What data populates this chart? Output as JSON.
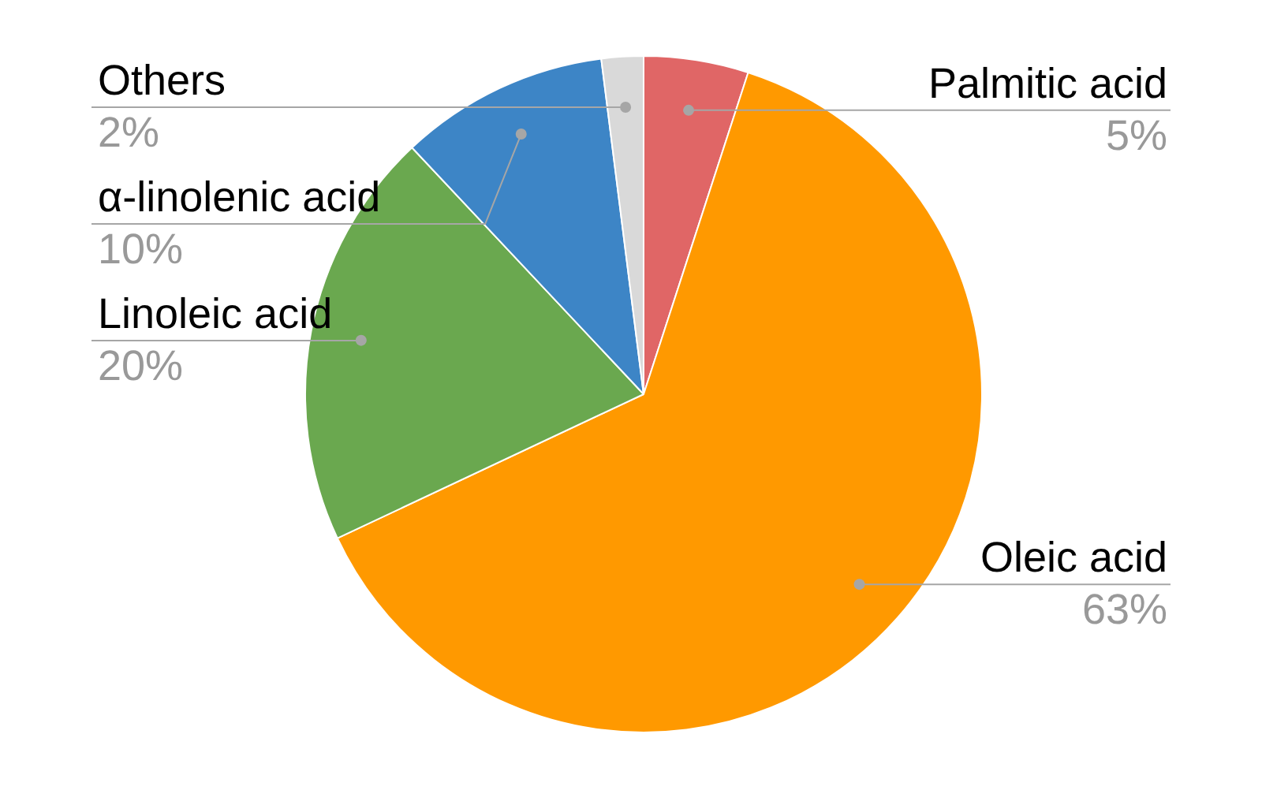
{
  "chart_data": {
    "type": "pie",
    "categories": [
      "Palmitic acid",
      "Oleic acid",
      "Linoleic acid",
      "α-linolenic acid",
      "Others"
    ],
    "values": [
      5,
      63,
      20,
      10,
      2
    ],
    "colors": [
      "#e06666",
      "#ff9900",
      "#6aa84f",
      "#3d85c6",
      "#d9d9d9"
    ],
    "value_labels": [
      "5%",
      "63%",
      "20%",
      "10%",
      "2%"
    ]
  }
}
